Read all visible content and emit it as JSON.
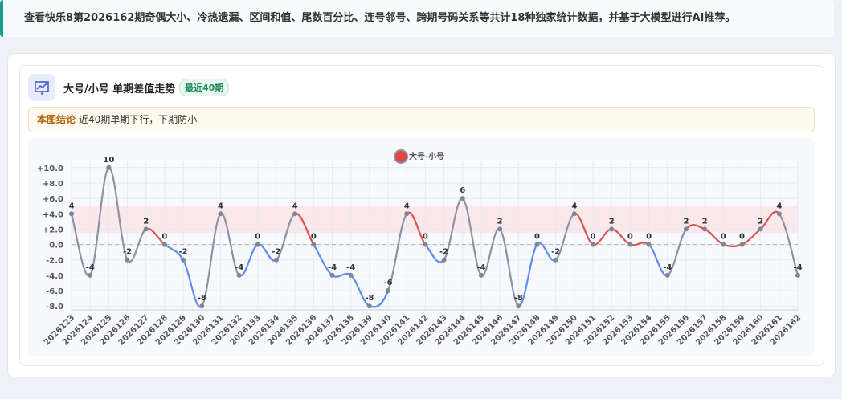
{
  "banner": {
    "text": "查看快乐8第2026162期奇偶大小、冷热遗漏、区间和值、尾数百分比、连号邻号、跨期号码关系等共计18种独家统计数据，并基于大模型进行AI推荐。"
  },
  "card": {
    "title": "大号/小号 单期差值走势",
    "badge": "最近40期",
    "conclusion_label": "本图结论",
    "conclusion": "近40期单期下行，下期防小"
  },
  "chart_data": {
    "type": "line",
    "categories": [
      "2026123",
      "2026124",
      "2026125",
      "2026126",
      "2026127",
      "2026128",
      "2026129",
      "2026130",
      "2026131",
      "2026132",
      "2026133",
      "2026134",
      "2026135",
      "2026136",
      "2026137",
      "2026138",
      "2026139",
      "2026140",
      "2026141",
      "2026142",
      "2026143",
      "2026144",
      "2026145",
      "2026146",
      "2026147",
      "2026148",
      "2026149",
      "2026150",
      "2026151",
      "2026152",
      "2026153",
      "2026154",
      "2026155",
      "2026156",
      "2026157",
      "2026158",
      "2026159",
      "2026160",
      "2026161",
      "2026162"
    ],
    "series": [
      {
        "name": "大号-小号",
        "color": "#e04646",
        "values": [
          4,
          -4,
          10,
          -2,
          2,
          0,
          -2,
          -8,
          4,
          -4,
          0,
          -2,
          4,
          0,
          -4,
          -4,
          -8,
          -6,
          4,
          0,
          -2,
          6,
          -4,
          2,
          -8,
          0,
          -2,
          4,
          0,
          2,
          0,
          0,
          -4,
          2,
          2,
          0,
          0,
          2,
          4,
          -4
        ]
      }
    ],
    "segment_colors": {
      "up": "#d9534f",
      "down": "#5b8def",
      "cross": "#8a94a6"
    },
    "bands": [
      {
        "from": 1.5,
        "to": 5,
        "color": "#fbe3e6"
      },
      {
        "from": -1.8,
        "to": -5.2,
        "color": "#e3eafb"
      }
    ],
    "ylim": [
      -8.5,
      10.5
    ],
    "yticks": [
      {
        "value": 10,
        "label": "+10.0"
      },
      {
        "value": 8,
        "label": "+8.0"
      },
      {
        "value": 6,
        "label": "+6.0"
      },
      {
        "value": 4,
        "label": "+4.0"
      },
      {
        "value": 2,
        "label": "+2.0"
      },
      {
        "value": 0,
        "label": "0.0"
      },
      {
        "value": -2,
        "label": "-2.0"
      },
      {
        "value": -4,
        "label": "-4.0"
      },
      {
        "value": -6,
        "label": "-6.0"
      },
      {
        "value": -8,
        "label": "-8.0"
      }
    ],
    "grid": true
  }
}
